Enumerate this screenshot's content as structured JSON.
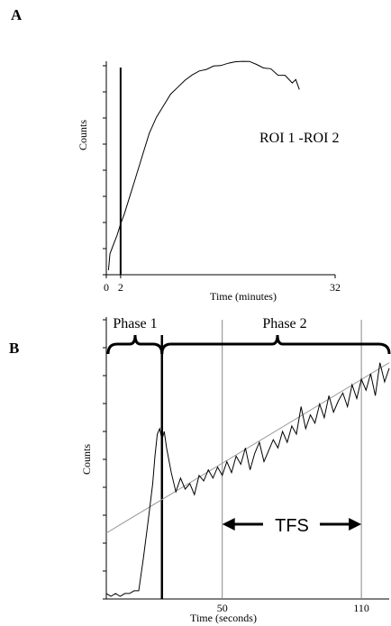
{
  "chart_data": [
    {
      "panel": "A",
      "type": "line",
      "xlabel": "Time (minutes)",
      "ylabel": "Counts",
      "x_tick_labels": [
        "0",
        "2",
        "32"
      ],
      "x_ticks": [
        0,
        2,
        32
      ],
      "xlim": [
        0,
        32
      ],
      "ylim": [
        0,
        100
      ],
      "grid": false,
      "annotation": "ROI 1 -ROI 2",
      "vline": 2,
      "series": [
        {
          "x": [
            0.3,
            0.5,
            1.0,
            1.5,
            2.0,
            2.5,
            3,
            4,
            5,
            6,
            7,
            8,
            9,
            10,
            11,
            12,
            13,
            14,
            15,
            16,
            17,
            18,
            19,
            20,
            21,
            22,
            23,
            24,
            25,
            26,
            26.5,
            27
          ],
          "values": [
            2,
            9,
            13,
            17,
            22,
            26,
            31,
            41,
            51,
            61,
            68,
            73,
            78,
            81,
            84,
            86,
            88,
            89,
            90,
            90.5,
            91,
            92,
            92.5,
            92,
            91,
            89,
            89,
            86.5,
            86,
            83,
            84,
            80
          ]
        }
      ]
    },
    {
      "panel": "B",
      "type": "line",
      "xlabel": "Time (seconds)",
      "ylabel": "Counts",
      "x_tick_labels": [
        "50",
        "110"
      ],
      "x_ticks": [
        50,
        110
      ],
      "xlim": [
        0,
        122
      ],
      "ylim": [
        0,
        100
      ],
      "grid": false,
      "vlines": [
        24,
        50,
        110
      ],
      "bracket_labels": [
        "Phase 1",
        "Phase 2"
      ],
      "arrow_label": "TFS",
      "series": [
        {
          "x": [
            0,
            2,
            4,
            6,
            8,
            10,
            12,
            14,
            16,
            18,
            20,
            21,
            22,
            23,
            24,
            25,
            26,
            28,
            30,
            32,
            34,
            36,
            38,
            40,
            42,
            44,
            46,
            48,
            50,
            52,
            54,
            56,
            58,
            60,
            62,
            64,
            66,
            68,
            70,
            72,
            74,
            76,
            78,
            80,
            82,
            84,
            86,
            88,
            90,
            92,
            94,
            96,
            98,
            100,
            102,
            104,
            106,
            108,
            110,
            112,
            114,
            116,
            118,
            120,
            122
          ],
          "values": [
            2,
            1,
            2,
            1,
            2,
            2,
            3,
            3,
            15,
            28,
            42,
            52,
            60,
            62,
            58,
            61,
            55,
            46,
            39,
            44,
            40,
            42,
            38,
            45,
            43,
            47,
            44,
            48,
            45,
            50,
            46,
            52,
            49,
            55,
            47,
            53,
            57,
            50,
            54,
            58,
            55,
            61,
            57,
            63,
            60,
            70,
            62,
            67,
            64,
            71,
            66,
            74,
            68,
            72,
            75,
            70,
            78,
            73,
            80,
            76,
            82,
            74,
            86,
            79,
            84
          ]
        },
        {
          "x": [
            0,
            122
          ],
          "values": [
            24,
            86
          ]
        }
      ]
    }
  ]
}
